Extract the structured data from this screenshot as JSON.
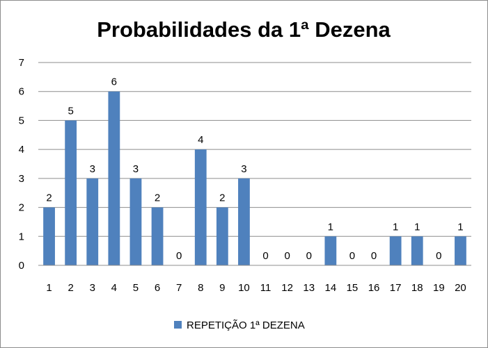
{
  "chart_data": {
    "type": "bar",
    "title": "Probabilidades da 1ª Dezena",
    "xlabel": "",
    "ylabel": "",
    "ylim": [
      0,
      7
    ],
    "yticks": [
      "0",
      "1",
      "2",
      "3",
      "4",
      "5",
      "6",
      "7"
    ],
    "grid": true,
    "legend_position": "bottom",
    "categories": [
      "1",
      "2",
      "3",
      "4",
      "5",
      "6",
      "7",
      "8",
      "9",
      "10",
      "11",
      "12",
      "13",
      "14",
      "15",
      "16",
      "17",
      "18",
      "19",
      "20"
    ],
    "series": [
      {
        "name": "REPETIÇÃO 1ª DEZENA",
        "color": "#4f81bd",
        "values": [
          2,
          5,
          3,
          6,
          3,
          2,
          0,
          4,
          2,
          3,
          0,
          0,
          0,
          1,
          0,
          0,
          1,
          1,
          0,
          1
        ]
      }
    ]
  }
}
